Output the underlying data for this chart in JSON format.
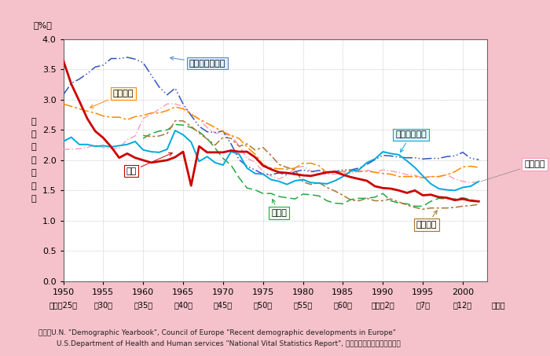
{
  "background_color": "#f5c2cb",
  "plot_bg_color": "#ffffff",
  "ylabel": "合\n計\n特\n殊\n出\n生\n率",
  "source_text1": "資料：U.N. \"Demographic Yearbook\", Council of Europe \"Recent demographic developments in Europe\"",
  "source_text2": "        U.S.Department of Health and Human services \"National Vital Statistics Report\", 厚生労働省「人口動態統計」",
  "years": [
    1950,
    1951,
    1952,
    1953,
    1954,
    1955,
    1956,
    1957,
    1958,
    1959,
    1960,
    1961,
    1962,
    1963,
    1964,
    1965,
    1966,
    1967,
    1968,
    1969,
    1970,
    1971,
    1972,
    1973,
    1974,
    1975,
    1976,
    1977,
    1978,
    1979,
    1980,
    1981,
    1982,
    1983,
    1984,
    1985,
    1986,
    1987,
    1988,
    1989,
    1990,
    1991,
    1992,
    1993,
    1994,
    1995,
    1996,
    1997,
    1998,
    1999,
    2000,
    2001,
    2002
  ],
  "japan": [
    3.65,
    3.26,
    2.98,
    2.69,
    2.48,
    2.37,
    2.22,
    2.04,
    2.11,
    2.04,
    2.0,
    1.96,
    1.98,
    2.0,
    2.05,
    2.14,
    1.58,
    2.23,
    2.13,
    2.13,
    2.13,
    2.16,
    2.14,
    2.14,
    2.05,
    1.91,
    1.85,
    1.8,
    1.79,
    1.77,
    1.75,
    1.74,
    1.77,
    1.8,
    1.81,
    1.76,
    1.72,
    1.69,
    1.66,
    1.57,
    1.54,
    1.53,
    1.5,
    1.46,
    1.5,
    1.42,
    1.43,
    1.39,
    1.38,
    1.34,
    1.36,
    1.33,
    1.32
  ],
  "usa": [
    3.08,
    3.27,
    3.34,
    3.43,
    3.54,
    3.57,
    3.68,
    3.68,
    3.7,
    3.67,
    3.61,
    3.41,
    3.21,
    3.08,
    3.19,
    2.93,
    2.74,
    2.56,
    2.47,
    2.46,
    2.48,
    2.27,
    2.01,
    1.9,
    1.84,
    1.77,
    1.76,
    1.79,
    1.76,
    1.81,
    1.84,
    1.81,
    1.83,
    1.8,
    1.81,
    1.84,
    1.84,
    1.87,
    1.93,
    2.01,
    2.08,
    2.07,
    2.05,
    2.04,
    2.04,
    2.02,
    2.03,
    2.03,
    2.06,
    2.07,
    2.13,
    2.03,
    2.01
  ],
  "france": [
    2.93,
    2.89,
    2.85,
    2.81,
    2.78,
    2.73,
    2.71,
    2.71,
    2.67,
    2.72,
    2.74,
    2.78,
    2.78,
    2.82,
    2.88,
    2.85,
    2.76,
    2.68,
    2.61,
    2.54,
    2.47,
    2.41,
    2.36,
    2.22,
    2.1,
    1.93,
    1.87,
    1.86,
    1.85,
    1.87,
    1.95,
    1.95,
    1.91,
    1.79,
    1.8,
    1.81,
    1.83,
    1.81,
    1.82,
    1.8,
    1.78,
    1.77,
    1.73,
    1.73,
    1.73,
    1.71,
    1.73,
    1.73,
    1.76,
    1.81,
    1.89,
    1.9,
    1.88
  ],
  "uk": [
    2.18,
    2.18,
    2.19,
    2.21,
    2.25,
    2.21,
    2.19,
    2.2,
    2.34,
    2.4,
    2.69,
    2.76,
    2.84,
    2.93,
    2.93,
    2.89,
    2.77,
    2.68,
    2.54,
    2.45,
    2.43,
    2.41,
    2.24,
    2.03,
    1.97,
    1.81,
    1.74,
    1.69,
    1.75,
    1.87,
    1.9,
    1.82,
    1.78,
    1.77,
    1.77,
    1.79,
    1.78,
    1.82,
    1.84,
    1.8,
    1.84,
    1.82,
    1.8,
    1.76,
    1.75,
    1.71,
    1.73,
    1.73,
    1.76,
    1.69,
    1.65,
    1.63,
    1.64
  ],
  "germany": [
    null,
    null,
    null,
    null,
    null,
    null,
    null,
    null,
    null,
    null,
    2.36,
    2.44,
    2.48,
    2.5,
    2.59,
    2.58,
    2.54,
    2.47,
    2.36,
    2.2,
    2.03,
    1.92,
    1.71,
    1.54,
    1.51,
    1.45,
    1.45,
    1.4,
    1.38,
    1.36,
    1.44,
    1.43,
    1.41,
    1.33,
    1.29,
    1.28,
    1.35,
    1.37,
    1.37,
    1.39,
    1.45,
    1.33,
    1.29,
    1.28,
    1.24,
    1.24,
    1.32,
    1.37,
    1.36,
    1.36,
    1.38,
    1.35,
    1.31
  ],
  "sweden": [
    2.31,
    2.38,
    2.26,
    2.26,
    2.23,
    2.24,
    2.22,
    2.24,
    2.26,
    2.31,
    2.17,
    2.14,
    2.13,
    2.18,
    2.49,
    2.42,
    2.3,
    1.98,
    2.06,
    1.96,
    1.92,
    2.14,
    2.1,
    1.87,
    1.78,
    1.77,
    1.68,
    1.65,
    1.6,
    1.66,
    1.68,
    1.63,
    1.62,
    1.61,
    1.66,
    1.73,
    1.82,
    1.84,
    1.96,
    2.02,
    2.14,
    2.11,
    2.09,
    1.99,
    1.88,
    1.74,
    1.61,
    1.53,
    1.51,
    1.5,
    1.55,
    1.57,
    1.65
  ],
  "italy": [
    null,
    null,
    null,
    null,
    null,
    null,
    null,
    null,
    null,
    null,
    2.41,
    2.39,
    2.4,
    2.44,
    2.65,
    2.65,
    2.56,
    2.45,
    2.35,
    2.25,
    2.38,
    2.36,
    2.23,
    2.27,
    2.17,
    2.21,
    2.08,
    1.93,
    1.88,
    1.84,
    1.64,
    1.6,
    1.63,
    1.55,
    1.49,
    1.42,
    1.34,
    1.33,
    1.37,
    1.33,
    1.33,
    1.36,
    1.31,
    1.26,
    1.22,
    1.19,
    1.21,
    1.21,
    1.21,
    1.22,
    1.24,
    1.25,
    1.27
  ],
  "ylim": [
    0.0,
    4.0
  ],
  "yticks": [
    0.0,
    0.5,
    1.0,
    1.5,
    2.0,
    2.5,
    3.0,
    3.5,
    4.0
  ],
  "xticks": [
    1950,
    1955,
    1960,
    1965,
    1970,
    1975,
    1980,
    1985,
    1990,
    1995,
    2000
  ],
  "xtick_labels_top": [
    "1950",
    "1955",
    "1960",
    "1965",
    "1970",
    "1975",
    "1980",
    "1985",
    "1990",
    "1995",
    "2000"
  ],
  "xtick_labels_bottom": [
    "（昭和25）",
    "（30）",
    "（35）",
    "（40）",
    "（45）",
    "（50）",
    "（55）",
    "（60）",
    "（平成2）",
    "（7）",
    "（12）"
  ],
  "year_label": "（年）"
}
